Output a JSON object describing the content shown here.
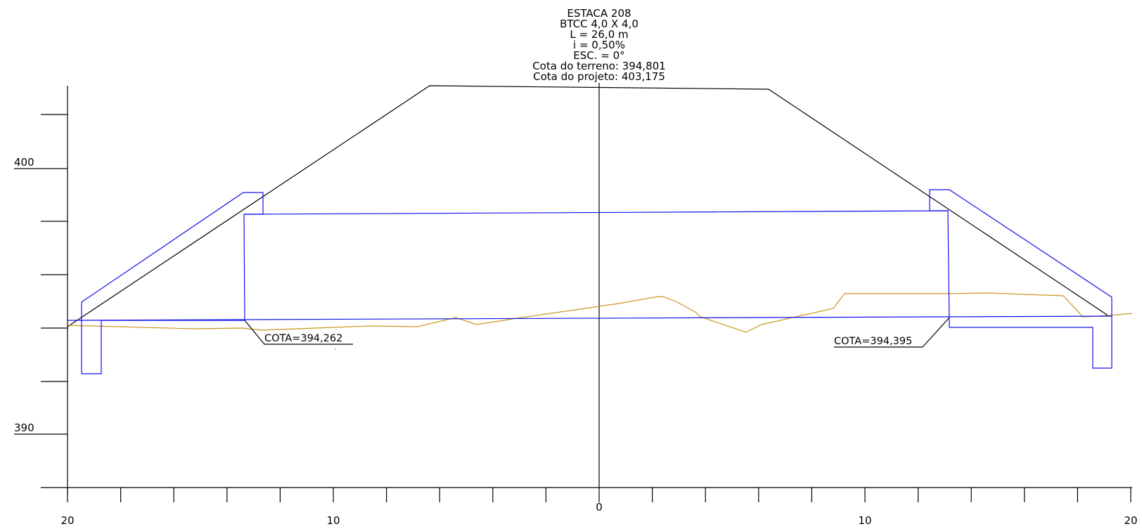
{
  "title_block": {
    "station": "ESTACA 208",
    "culvert": "BTCC 4,0 X 4,0",
    "length": "L = 26,0 m",
    "slope": "i = 0,50%",
    "skew": "ESC. = 0°",
    "ground_elevation": "Cota do terreno: 394,801",
    "design_elevation": "Cota do projeto: 403,175"
  },
  "annotations": {
    "left_invert": "COTA=394,262",
    "right_invert": "COTA=394,395"
  },
  "axes": {
    "y_labels": [
      "400",
      "390"
    ],
    "x_labels": [
      "20",
      "10",
      "0",
      "10",
      "20"
    ]
  },
  "colors": {
    "terrain": "#c8961e",
    "culvert": "#1010ee",
    "embankment": "#000000"
  }
}
